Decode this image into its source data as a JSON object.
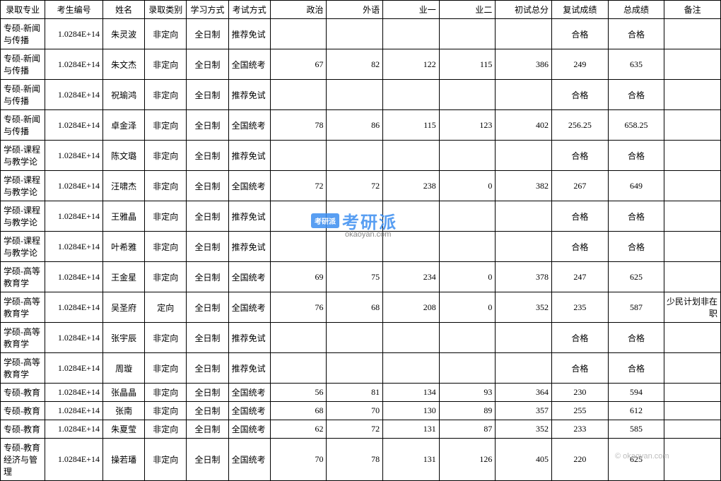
{
  "table": {
    "columns": [
      {
        "key": "major",
        "label": "录取专业",
        "width": 62,
        "align": "left"
      },
      {
        "key": "id",
        "label": "考生编号",
        "width": 80,
        "align": "right"
      },
      {
        "key": "name",
        "label": "姓名",
        "width": 58,
        "align": "center"
      },
      {
        "key": "type",
        "label": "录取类别",
        "width": 58,
        "align": "center"
      },
      {
        "key": "mode",
        "label": "学习方式",
        "width": 58,
        "align": "center"
      },
      {
        "key": "exam",
        "label": "考试方式",
        "width": 58,
        "align": "left"
      },
      {
        "key": "pol",
        "label": "政治",
        "width": 78,
        "align": "right"
      },
      {
        "key": "lang",
        "label": "外语",
        "width": 78,
        "align": "right"
      },
      {
        "key": "s1",
        "label": "业一",
        "width": 78,
        "align": "right"
      },
      {
        "key": "s2",
        "label": "业二",
        "width": 78,
        "align": "right"
      },
      {
        "key": "pre",
        "label": "初试总分",
        "width": 78,
        "align": "right"
      },
      {
        "key": "re",
        "label": "复试成绩",
        "width": 78,
        "align": "center"
      },
      {
        "key": "total",
        "label": "总成绩",
        "width": 78,
        "align": "center"
      },
      {
        "key": "note",
        "label": "备注",
        "width": 78,
        "align": "right"
      }
    ],
    "rows": [
      {
        "major": "专硕-新闻与传播",
        "id": "1.0284E+14",
        "name": "朱灵波",
        "type": "非定向",
        "mode": "全日制",
        "exam": "推荐免试",
        "pol": "",
        "lang": "",
        "s1": "",
        "s2": "",
        "pre": "",
        "re": "合格",
        "total": "合格",
        "note": "",
        "tall": true
      },
      {
        "major": "专硕-新闻与传播",
        "id": "1.0284E+14",
        "name": "朱文杰",
        "type": "非定向",
        "mode": "全日制",
        "exam": "全国统考",
        "pol": "67",
        "lang": "82",
        "s1": "122",
        "s2": "115",
        "pre": "386",
        "re": "249",
        "total": "635",
        "note": "",
        "tall": true
      },
      {
        "major": "专硕-新闻与传播",
        "id": "1.0284E+14",
        "name": "祝瑜鸿",
        "type": "非定向",
        "mode": "全日制",
        "exam": "推荐免试",
        "pol": "",
        "lang": "",
        "s1": "",
        "s2": "",
        "pre": "",
        "re": "合格",
        "total": "合格",
        "note": "",
        "tall": true
      },
      {
        "major": "专硕-新闻与传播",
        "id": "1.0284E+14",
        "name": "卓金泽",
        "type": "非定向",
        "mode": "全日制",
        "exam": "全国统考",
        "pol": "78",
        "lang": "86",
        "s1": "115",
        "s2": "123",
        "pre": "402",
        "re": "256.25",
        "total": "658.25",
        "note": "",
        "tall": true
      },
      {
        "major": "学硕-课程与教学论",
        "id": "1.0284E+14",
        "name": "陈文璐",
        "type": "非定向",
        "mode": "全日制",
        "exam": "推荐免试",
        "pol": "",
        "lang": "",
        "s1": "",
        "s2": "",
        "pre": "",
        "re": "合格",
        "total": "合格",
        "note": "",
        "tall": true
      },
      {
        "major": "学硕-课程与教学论",
        "id": "1.0284E+14",
        "name": "汪啸杰",
        "type": "非定向",
        "mode": "全日制",
        "exam": "全国统考",
        "pol": "72",
        "lang": "72",
        "s1": "238",
        "s2": "0",
        "pre": "382",
        "re": "267",
        "total": "649",
        "note": "",
        "tall": true
      },
      {
        "major": "学硕-课程与教学论",
        "id": "1.0284E+14",
        "name": "王雅晶",
        "type": "非定向",
        "mode": "全日制",
        "exam": "推荐免试",
        "pol": "",
        "lang": "",
        "s1": "",
        "s2": "",
        "pre": "",
        "re": "合格",
        "total": "合格",
        "note": "",
        "tall": true
      },
      {
        "major": "学硕-课程与教学论",
        "id": "1.0284E+14",
        "name": "叶希雅",
        "type": "非定向",
        "mode": "全日制",
        "exam": "推荐免试",
        "pol": "",
        "lang": "",
        "s1": "",
        "s2": "",
        "pre": "",
        "re": "合格",
        "total": "合格",
        "note": "",
        "tall": true
      },
      {
        "major": "学硕-高等教育学",
        "id": "1.0284E+14",
        "name": "王金星",
        "type": "非定向",
        "mode": "全日制",
        "exam": "全国统考",
        "pol": "69",
        "lang": "75",
        "s1": "234",
        "s2": "0",
        "pre": "378",
        "re": "247",
        "total": "625",
        "note": "",
        "tall": true
      },
      {
        "major": "学硕-高等教育学",
        "id": "1.0284E+14",
        "name": "吴圣府",
        "type": "定向",
        "mode": "全日制",
        "exam": "全国统考",
        "pol": "76",
        "lang": "68",
        "s1": "208",
        "s2": "0",
        "pre": "352",
        "re": "235",
        "total": "587",
        "note": "少民计划非在职",
        "tall": true
      },
      {
        "major": "学硕-高等教育学",
        "id": "1.0284E+14",
        "name": "张宇辰",
        "type": "非定向",
        "mode": "全日制",
        "exam": "推荐免试",
        "pol": "",
        "lang": "",
        "s1": "",
        "s2": "",
        "pre": "",
        "re": "合格",
        "total": "合格",
        "note": "",
        "tall": true
      },
      {
        "major": "学硕-高等教育学",
        "id": "1.0284E+14",
        "name": "周璇",
        "type": "非定向",
        "mode": "全日制",
        "exam": "推荐免试",
        "pol": "",
        "lang": "",
        "s1": "",
        "s2": "",
        "pre": "",
        "re": "合格",
        "total": "合格",
        "note": "",
        "tall": true
      },
      {
        "major": "专硕-教育",
        "id": "1.0284E+14",
        "name": "张晶晶",
        "type": "非定向",
        "mode": "全日制",
        "exam": "全国统考",
        "pol": "56",
        "lang": "81",
        "s1": "134",
        "s2": "93",
        "pre": "364",
        "re": "230",
        "total": "594",
        "note": "",
        "tall": false
      },
      {
        "major": "专硕-教育",
        "id": "1.0284E+14",
        "name": "张南",
        "type": "非定向",
        "mode": "全日制",
        "exam": "全国统考",
        "pol": "68",
        "lang": "70",
        "s1": "130",
        "s2": "89",
        "pre": "357",
        "re": "255",
        "total": "612",
        "note": "",
        "tall": false
      },
      {
        "major": "专硕-教育",
        "id": "1.0284E+14",
        "name": "朱夏莹",
        "type": "非定向",
        "mode": "全日制",
        "exam": "全国统考",
        "pol": "62",
        "lang": "72",
        "s1": "131",
        "s2": "87",
        "pre": "352",
        "re": "233",
        "total": "585",
        "note": "",
        "tall": false
      },
      {
        "major": "专硕-教育经济与管理",
        "id": "1.0284E+14",
        "name": "操若璠",
        "type": "非定向",
        "mode": "全日制",
        "exam": "全国统考",
        "pol": "70",
        "lang": "78",
        "s1": "131",
        "s2": "126",
        "pre": "405",
        "re": "220",
        "total": "625",
        "note": "",
        "tall": true
      }
    ],
    "border_color": "#000000",
    "background_color": "#ffffff",
    "font_size": 12
  },
  "watermark": {
    "badge_text": "考研派",
    "main_text": "考研派",
    "sub_text": "okaoyan.com",
    "sub_text2": "© okaoyan.com",
    "main_color": "#3b8ef0",
    "sub_color": "#888888"
  }
}
